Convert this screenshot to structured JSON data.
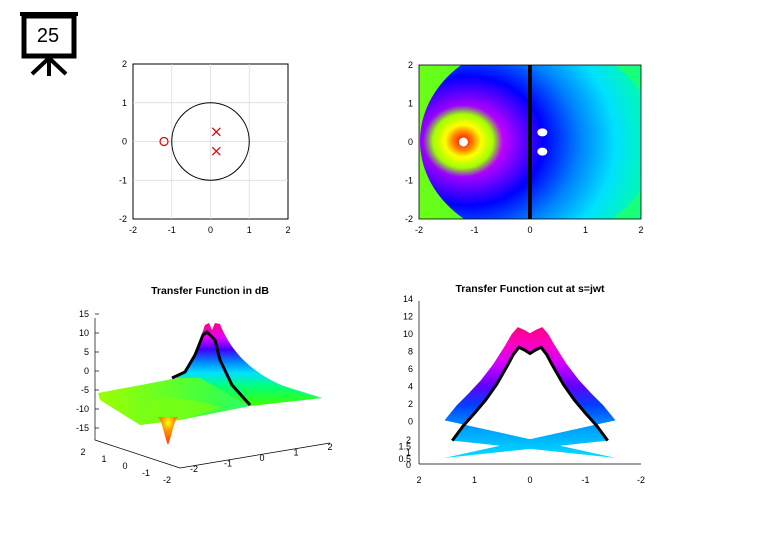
{
  "slide": {
    "number": "25",
    "icon": "presentation-easel-icon"
  },
  "chart_data": [
    {
      "type": "scatter",
      "plot": "pole-zero",
      "xlim": [
        -2,
        2
      ],
      "ylim": [
        -2,
        2
      ],
      "xticks": [
        "-2",
        "-1",
        "0",
        "1",
        "2"
      ],
      "yticks": [
        "2",
        "1",
        "0",
        "-1",
        "-2"
      ],
      "grid": true,
      "zeros": [
        {
          "x": -1.2,
          "y": 0
        }
      ],
      "poles": [
        {
          "x": 0.15,
          "y": 0.25
        },
        {
          "x": 0.15,
          "y": -0.25
        }
      ],
      "unit_circle": {
        "cx": 0,
        "cy": 0,
        "r": 1
      },
      "colors": {
        "markers": "#e00000",
        "circle": "#000000"
      }
    },
    {
      "type": "heatmap",
      "plot": "magnitude-map",
      "xlim": [
        -2,
        2
      ],
      "ylim": [
        -2,
        2
      ],
      "xticks": [
        "-2",
        "-1",
        "0",
        "1",
        "2"
      ],
      "yticks": [
        "2",
        "1",
        "0",
        "-1",
        "-2"
      ],
      "colormap": "hsv",
      "zero_location": {
        "x": -1.2,
        "y": 0
      },
      "pole_locations": [
        {
          "x": 0.15,
          "y": 0.25
        },
        {
          "x": 0.15,
          "y": -0.25
        }
      ],
      "jw_axis_line": {
        "x": 0
      }
    },
    {
      "type": "area",
      "plot": "surface-3d",
      "title": "Transfer Function in dB",
      "zticks": [
        "15",
        "10",
        "5",
        "0",
        "-5",
        "-10",
        "-15"
      ],
      "xticks": [
        "2",
        "1",
        "0",
        "-1",
        "-2"
      ],
      "yticks": [
        "-2",
        "-1",
        "0",
        "1",
        "2"
      ],
      "zlim": [
        -15,
        15
      ],
      "colormap": "hsv"
    },
    {
      "type": "area",
      "plot": "jw-cut",
      "title": "Transfer Function cut at s=jwt",
      "yticks_upper": [
        "14",
        "12",
        "10",
        "8",
        "6",
        "4",
        "2",
        "0"
      ],
      "yticks_lower": [
        "2",
        "1.5",
        "1",
        "0.5",
        "0"
      ],
      "xticks": [
        "2",
        "1",
        "0",
        "-1",
        "-2"
      ],
      "xlim": [
        2,
        -2
      ],
      "cut_curve": {
        "w": [
          -1.4,
          -1.2,
          -1.0,
          -0.8,
          -0.6,
          -0.4,
          -0.3,
          -0.2,
          -0.1,
          0.0,
          0.1,
          0.2,
          0.3,
          0.4,
          0.6,
          0.8,
          1.0,
          1.2,
          1.4
        ],
        "db": [
          -2,
          -0.3,
          1.1,
          2.6,
          4.4,
          6.6,
          7.8,
          8.6,
          8.3,
          7.9,
          8.3,
          8.6,
          7.8,
          6.6,
          4.4,
          2.6,
          1.1,
          -0.3,
          -2
        ]
      }
    }
  ]
}
